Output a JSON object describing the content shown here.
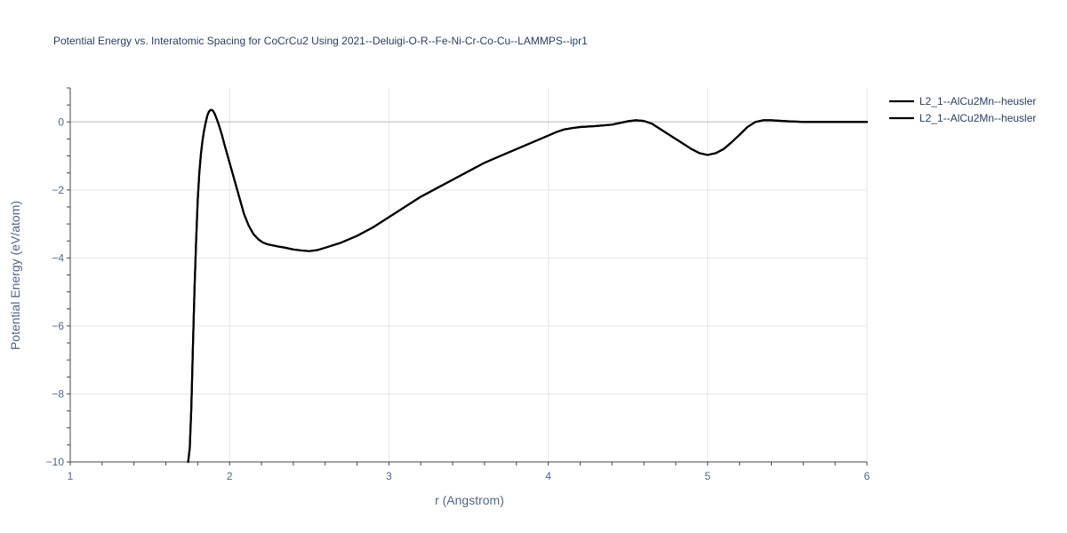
{
  "chart_data": {
    "type": "line",
    "title": "Potential Energy vs. Interatomic Spacing for CoCrCu2 Using 2021--Deluigi-O-R--Fe-Ni-Cr-Co-Cu--LAMMPS--ipr1",
    "xlabel": "r (Angstrom)",
    "ylabel": "Potential Energy (eV/atom)",
    "xlim": [
      1,
      6
    ],
    "ylim": [
      -10,
      1
    ],
    "xticks": [
      1,
      2,
      3,
      4,
      5,
      6
    ],
    "xtick_labels": [
      "1",
      "2",
      "3",
      "4",
      "5",
      "6"
    ],
    "yticks": [
      -10,
      -8,
      -6,
      -4,
      -2,
      0
    ],
    "ytick_labels": [
      "−10",
      "−8",
      "−6",
      "−4",
      "−2",
      "0"
    ],
    "grid": true,
    "legend_position": "top-right",
    "colors": {
      "series": "#000000",
      "grid": "#e5e5e5",
      "text": "#2a3f5f"
    },
    "series": [
      {
        "name": "L2_1--AlCu2Mn--heusler",
        "x": [
          1.74,
          1.75,
          1.76,
          1.77,
          1.78,
          1.79,
          1.8,
          1.81,
          1.82,
          1.83,
          1.84,
          1.85,
          1.86,
          1.87,
          1.88,
          1.89,
          1.9,
          1.91,
          1.92,
          1.93,
          1.95,
          1.97,
          2.0,
          2.03,
          2.06,
          2.09,
          2.12,
          2.15,
          2.18,
          2.21,
          2.24,
          2.27,
          2.3,
          2.35,
          2.4,
          2.45,
          2.5,
          2.55,
          2.6,
          2.7,
          2.8,
          2.9,
          3.0,
          3.1,
          3.2,
          3.3,
          3.4,
          3.5,
          3.6,
          3.7,
          3.8,
          3.9,
          4.0,
          4.05,
          4.1,
          4.15,
          4.2,
          4.3,
          4.4,
          4.5,
          4.55,
          4.6,
          4.65,
          4.7,
          4.8,
          4.9,
          4.95,
          5.0,
          5.05,
          5.1,
          5.15,
          5.2,
          5.25,
          5.3,
          5.35,
          5.4,
          5.5,
          5.6,
          5.7,
          5.8,
          6.0
        ],
        "values": [
          -10.0,
          -9.6,
          -8.4,
          -6.6,
          -4.9,
          -3.5,
          -2.3,
          -1.5,
          -0.95,
          -0.55,
          -0.25,
          -0.02,
          0.18,
          0.3,
          0.35,
          0.35,
          0.3,
          0.2,
          0.08,
          -0.05,
          -0.35,
          -0.7,
          -1.2,
          -1.7,
          -2.2,
          -2.7,
          -3.05,
          -3.3,
          -3.45,
          -3.55,
          -3.6,
          -3.63,
          -3.66,
          -3.7,
          -3.75,
          -3.78,
          -3.8,
          -3.77,
          -3.7,
          -3.55,
          -3.35,
          -3.1,
          -2.8,
          -2.5,
          -2.2,
          -1.95,
          -1.7,
          -1.45,
          -1.2,
          -1.0,
          -0.8,
          -0.6,
          -0.4,
          -0.3,
          -0.22,
          -0.18,
          -0.15,
          -0.12,
          -0.08,
          0.02,
          0.05,
          0.03,
          -0.05,
          -0.2,
          -0.5,
          -0.8,
          -0.92,
          -0.97,
          -0.92,
          -0.8,
          -0.6,
          -0.38,
          -0.15,
          0.0,
          0.05,
          0.05,
          0.02,
          0.0,
          0.0,
          0.0,
          0.0
        ]
      },
      {
        "name": "L2_1--AlCu2Mn--heusler",
        "x": [
          1.74,
          1.75,
          1.76,
          1.77,
          1.78,
          1.79,
          1.8,
          1.81,
          1.82,
          1.83,
          1.84,
          1.85,
          1.86,
          1.87,
          1.88,
          1.89,
          1.9,
          1.91,
          1.92,
          1.93,
          1.95,
          1.97,
          2.0,
          2.03,
          2.06,
          2.09,
          2.12,
          2.15,
          2.18,
          2.21,
          2.24,
          2.27,
          2.3,
          2.35,
          2.4,
          2.45,
          2.5,
          2.55,
          2.6,
          2.7,
          2.8,
          2.9,
          3.0,
          3.1,
          3.2,
          3.3,
          3.4,
          3.5,
          3.6,
          3.7,
          3.8,
          3.9,
          4.0,
          4.05,
          4.1,
          4.15,
          4.2,
          4.3,
          4.4,
          4.5,
          4.55,
          4.6,
          4.65,
          4.7,
          4.8,
          4.9,
          4.95,
          5.0,
          5.05,
          5.1,
          5.15,
          5.2,
          5.25,
          5.3,
          5.35,
          5.4,
          5.5,
          5.6,
          5.7,
          5.8,
          6.0
        ],
        "values": [
          -10.0,
          -9.6,
          -8.4,
          -6.6,
          -4.9,
          -3.5,
          -2.3,
          -1.5,
          -0.95,
          -0.55,
          -0.25,
          -0.02,
          0.18,
          0.3,
          0.35,
          0.35,
          0.3,
          0.2,
          0.08,
          -0.05,
          -0.35,
          -0.7,
          -1.2,
          -1.7,
          -2.2,
          -2.7,
          -3.05,
          -3.3,
          -3.45,
          -3.55,
          -3.6,
          -3.63,
          -3.66,
          -3.7,
          -3.75,
          -3.78,
          -3.8,
          -3.77,
          -3.7,
          -3.55,
          -3.35,
          -3.1,
          -2.8,
          -2.5,
          -2.2,
          -1.95,
          -1.7,
          -1.45,
          -1.2,
          -1.0,
          -0.8,
          -0.6,
          -0.4,
          -0.3,
          -0.22,
          -0.18,
          -0.15,
          -0.12,
          -0.08,
          0.02,
          0.05,
          0.03,
          -0.05,
          -0.2,
          -0.5,
          -0.8,
          -0.92,
          -0.97,
          -0.92,
          -0.8,
          -0.6,
          -0.38,
          -0.15,
          0.0,
          0.05,
          0.05,
          0.02,
          0.0,
          0.0,
          0.0,
          0.0
        ]
      }
    ]
  }
}
